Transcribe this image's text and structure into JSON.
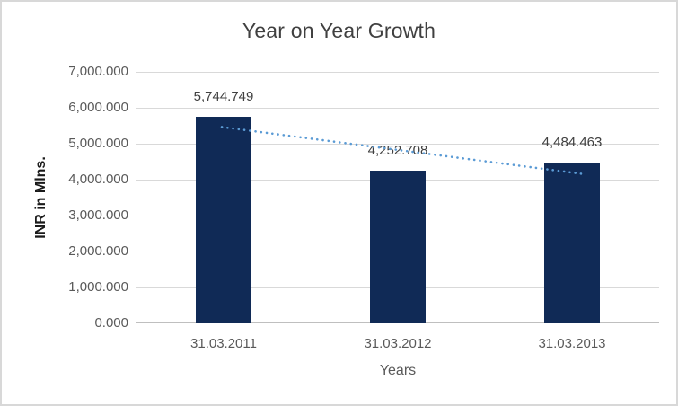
{
  "window": {
    "background": "#FFFFFF",
    "border_color": "#D8D8D8"
  },
  "chart_data": {
    "type": "bar",
    "title": "Year on Year Growth",
    "xlabel": "Years",
    "ylabel": "INR in Mlns.",
    "categories": [
      "31.03.2011",
      "31.03.2012",
      "31.03.2013"
    ],
    "values": [
      5744.749,
      4252.708,
      4484.463
    ],
    "value_labels": [
      "5,744.749",
      "4,252.708",
      "4,484.463"
    ],
    "ylim": [
      0,
      7000
    ],
    "ytick_step": 1000,
    "ytick_labels": [
      "0.000",
      "1,000.000",
      "2,000.000",
      "3,000.000",
      "4,000.000",
      "5,000.000",
      "6,000.000",
      "7,000.000"
    ],
    "grid": true,
    "legend": "none",
    "bar_color": "#102A56",
    "gridline_color": "#D9D9D9",
    "axis_line_color": "#BFBFBF",
    "title_color": "#404040",
    "tick_label_color": "#595959",
    "data_label_color": "#404040",
    "trendline": {
      "type": "linear",
      "style": "dotted",
      "color": "#5B9BD5",
      "values": [
        5457.4,
        4827.3,
        4197.2
      ]
    }
  }
}
